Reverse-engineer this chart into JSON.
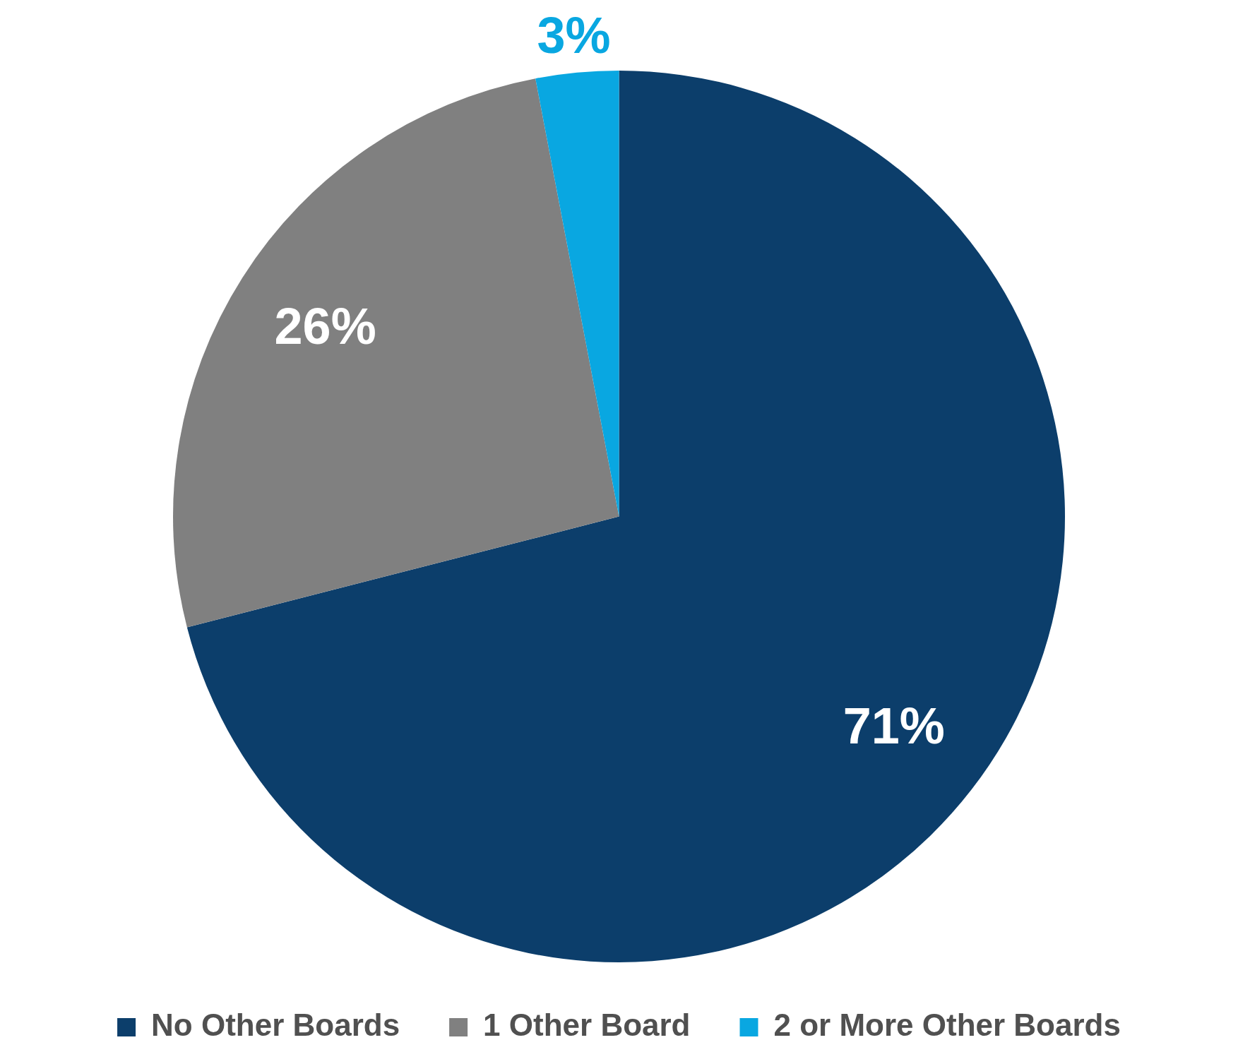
{
  "chart_data": {
    "type": "pie",
    "categories": [
      "No Other Boards",
      "1 Other Board",
      "2 or More Other Boards"
    ],
    "values": [
      71,
      26,
      3
    ],
    "colors": [
      "#0c3e6b",
      "#808080",
      "#09a7e1"
    ],
    "value_labels": [
      "71%",
      "26%",
      "3%"
    ],
    "legend": "bottom"
  }
}
